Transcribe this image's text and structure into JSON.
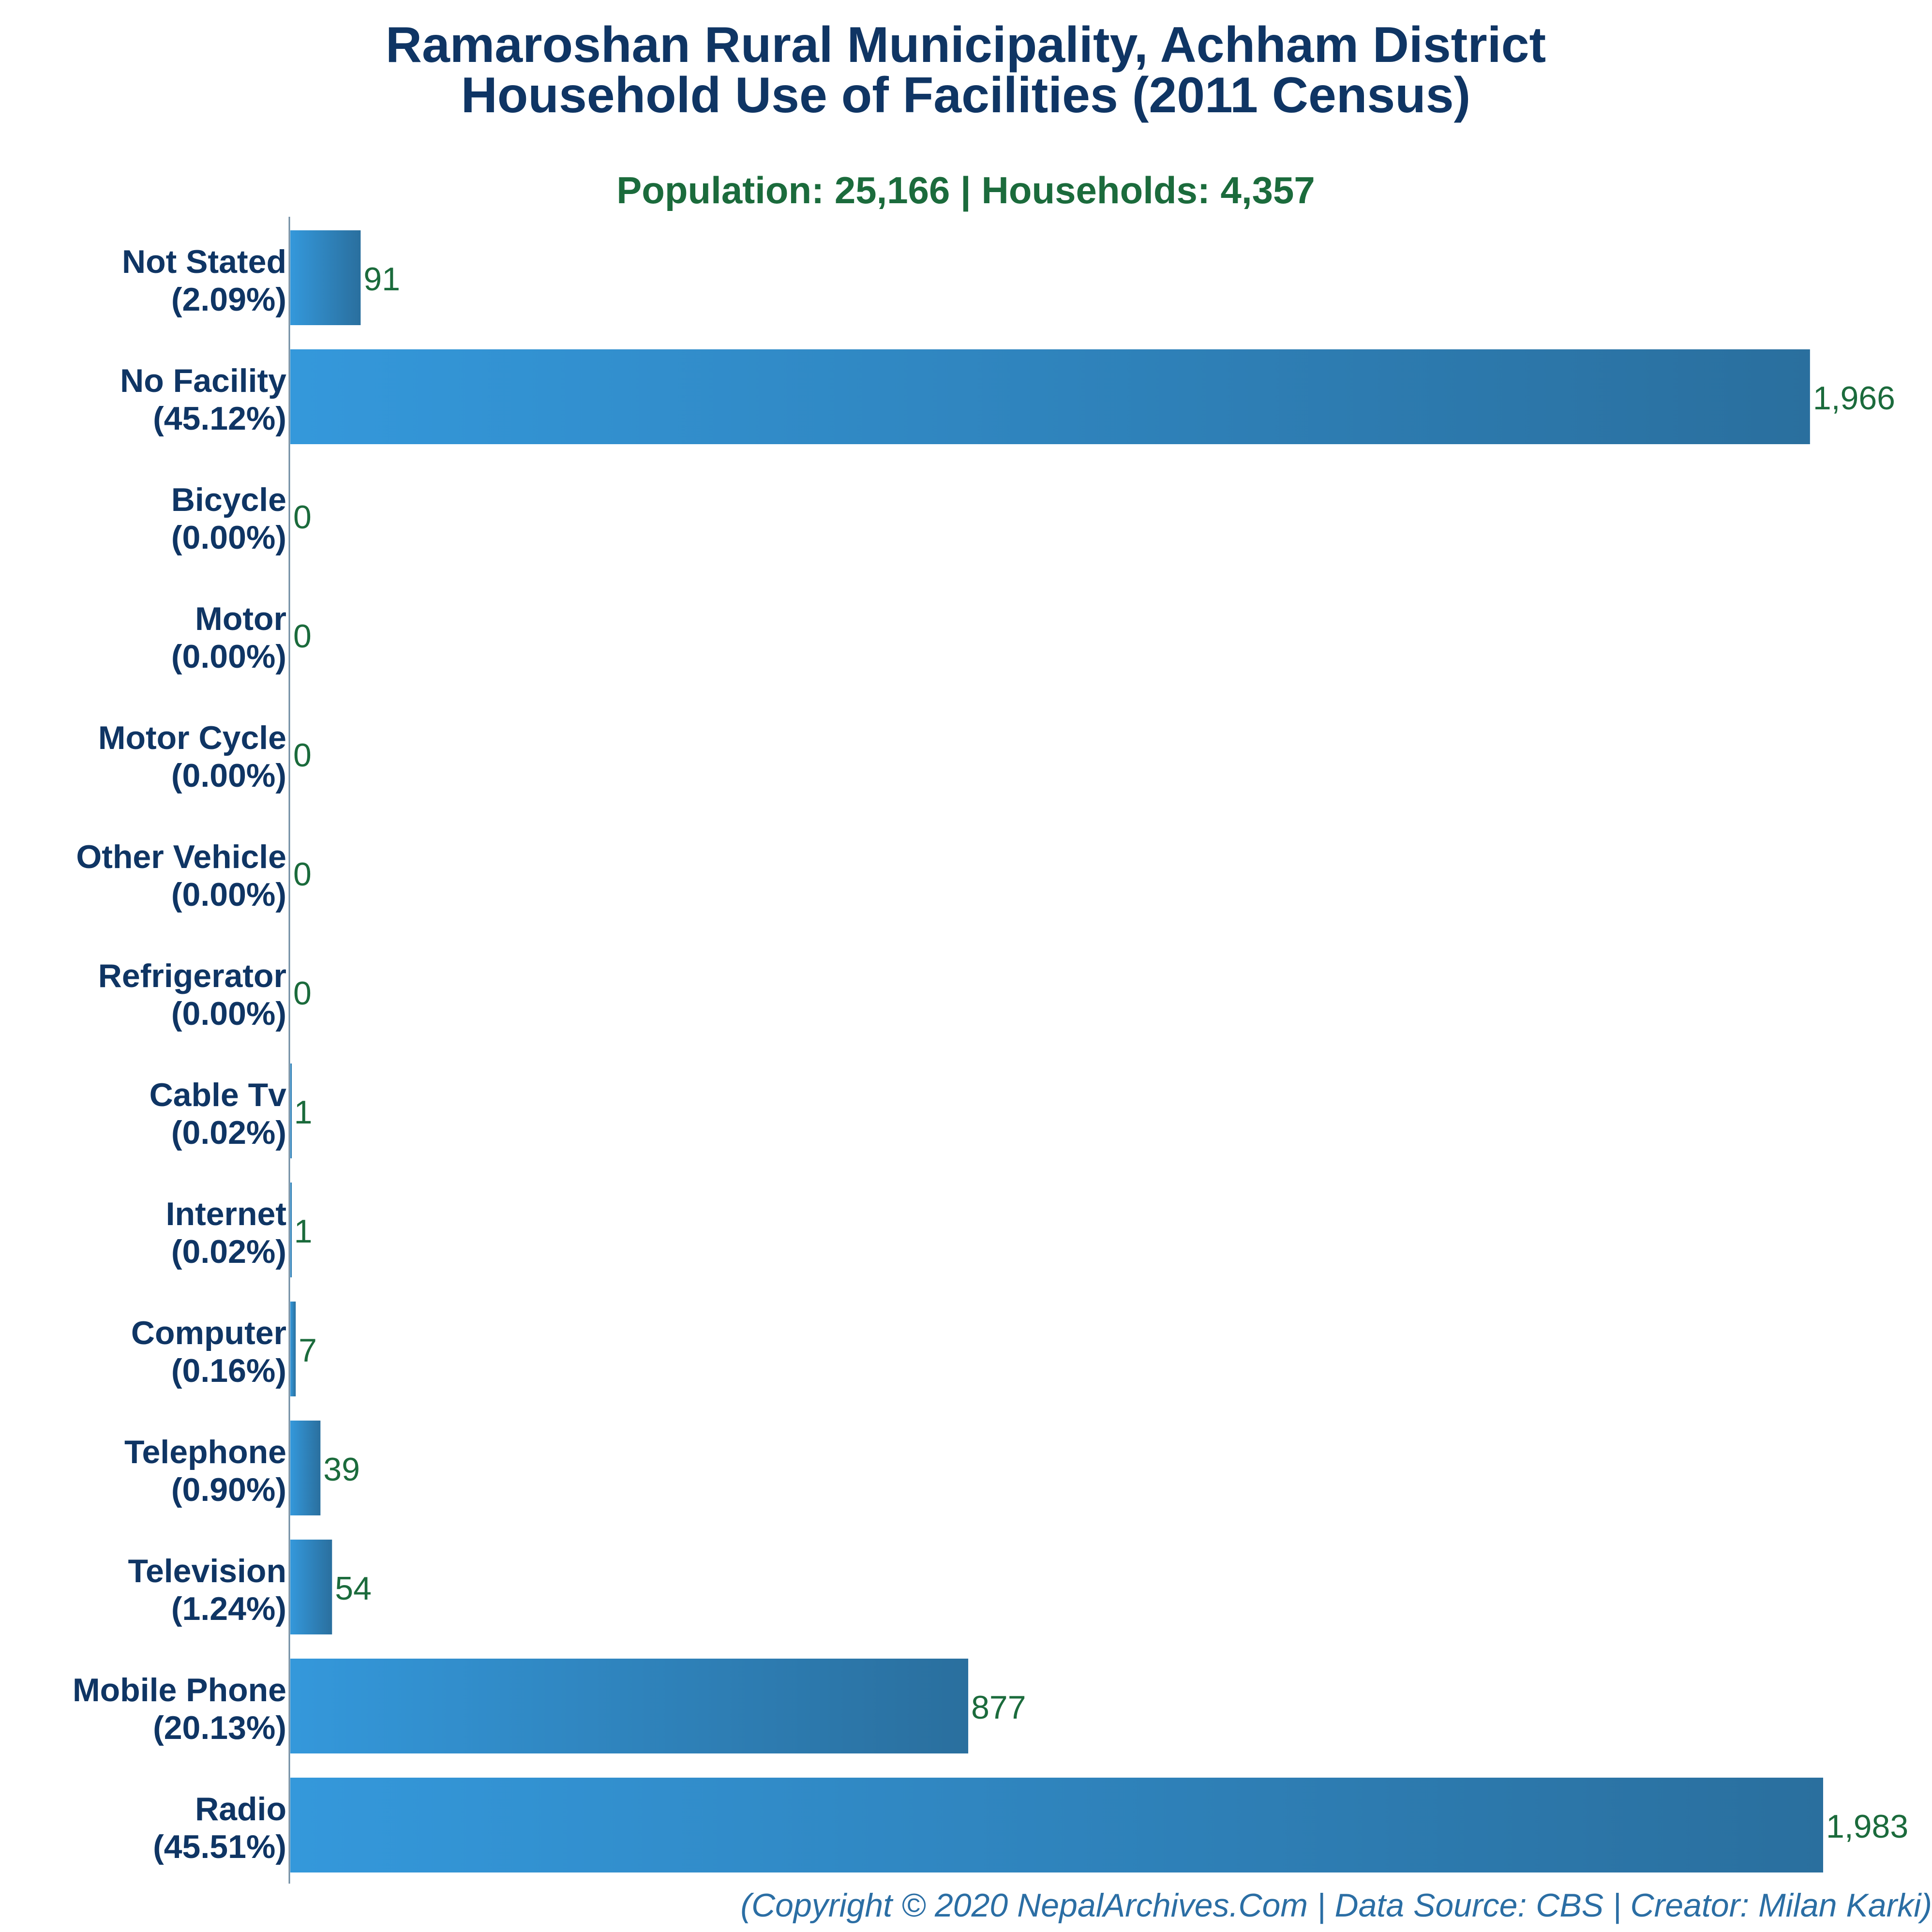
{
  "chart_data": {
    "type": "bar",
    "orientation": "horizontal",
    "title": "Ramaroshan Rural Municipality, Achham District",
    "title_line2": "Household Use of Facilities (2011 Census)",
    "subtitle": "Population: 25,166 | Households: 4,357",
    "categories": [
      "Not Stated",
      "No Facility",
      "Bicycle",
      "Motor",
      "Motor Cycle",
      "Other Vehicle",
      "Refrigerator",
      "Cable Tv",
      "Internet",
      "Computer",
      "Telephone",
      "Television",
      "Mobile Phone",
      "Radio"
    ],
    "percents": [
      "(2.09%)",
      "(45.12%)",
      "(0.00%)",
      "(0.00%)",
      "(0.00%)",
      "(0.00%)",
      "(0.00%)",
      "(0.02%)",
      "(0.02%)",
      "(0.16%)",
      "(0.90%)",
      "(1.24%)",
      "(20.13%)",
      "(45.51%)"
    ],
    "values": [
      91,
      1966,
      0,
      0,
      0,
      0,
      0,
      1,
      1,
      7,
      39,
      54,
      877,
      1983
    ],
    "value_labels": [
      "91",
      "1,966",
      "0",
      "0",
      "0",
      "0",
      "0",
      "1",
      "1",
      "7",
      "39",
      "54",
      "877",
      "1,983"
    ],
    "xlim": [
      0,
      1983
    ],
    "grid": false,
    "legend": "none",
    "colors": {
      "bar_light": "#3498db",
      "bar_dark": "#2a6f9e",
      "title": "#0f3564",
      "subtitle": "#1b6b3c",
      "value": "#1b6b3c",
      "footer": "#2b6ea4"
    }
  },
  "footer": "(Copyright © 2020 NepalArchives.Com | Data Source: CBS | Creator: Milan Karki)"
}
